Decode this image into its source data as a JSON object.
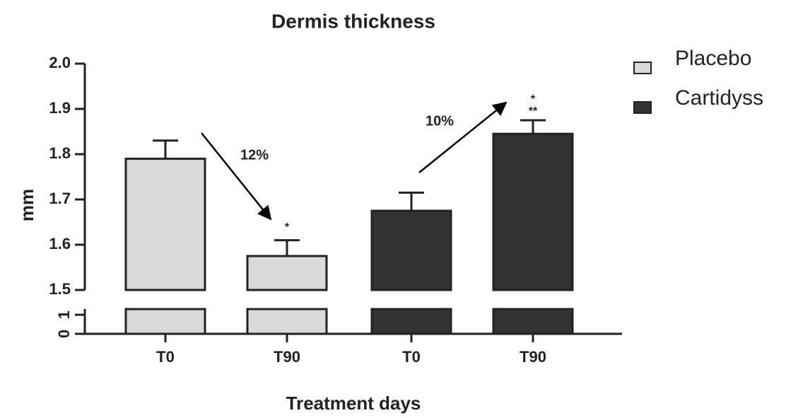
{
  "chart_data": {
    "type": "bar",
    "title": "Dermis thickness",
    "x_label": "Treatment days",
    "y_label": "mm",
    "categories": [
      "T0",
      "T90",
      "T0",
      "T90"
    ],
    "series": [
      {
        "name": "Placebo",
        "color": "#d9d9d9",
        "values": [
          1.79,
          1.575,
          null,
          null
        ],
        "errors": [
          0.04,
          0.035,
          null,
          null
        ]
      },
      {
        "name": "Cartidyss",
        "color": "#333333",
        "values": [
          null,
          null,
          1.675,
          1.845
        ],
        "errors": [
          null,
          null,
          0.04,
          0.03
        ]
      }
    ],
    "ylim": [
      1.5,
      2.0
    ],
    "yticks": [
      {
        "value": 1.5,
        "label": "1.5"
      },
      {
        "value": 1.6,
        "label": "1.6"
      },
      {
        "value": 1.7,
        "label": "1.7"
      },
      {
        "value": 1.8,
        "label": "1.8"
      },
      {
        "value": 1.9,
        "label": "1.9"
      },
      {
        "value": 2.0,
        "label": "2.0"
      }
    ],
    "ylim_lower": [
      0,
      1.3
    ],
    "yticks_lower": [
      0,
      1
    ],
    "legend": "right",
    "annotations": [
      "12%",
      "10%"
    ],
    "significance": [
      "*",
      "*",
      "**"
    ]
  }
}
